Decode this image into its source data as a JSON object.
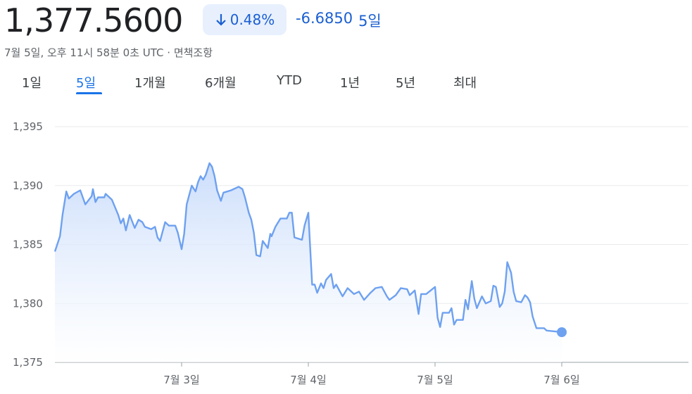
{
  "header": {
    "price": "1,377.5600",
    "change_percent": "0.48%",
    "change": "-6.6850",
    "period": "5일",
    "timestamp": "7월 5일, 오후 11시 58분 0초 UTC · 면책조항"
  },
  "tabs": {
    "items": [
      "1일",
      "5일",
      "1개월",
      "6개월",
      "YTD",
      "1년",
      "5년",
      "최대"
    ],
    "active": 1
  },
  "chart_data": {
    "type": "line",
    "color": "#6ea1f0",
    "grid": true,
    "xlim": [
      0,
      5
    ],
    "xticks": [
      {
        "value": 1,
        "label": "7월 3일"
      },
      {
        "value": 2,
        "label": "7월 4일"
      },
      {
        "value": 3,
        "label": "7월 5일"
      },
      {
        "value": 4,
        "label": "7월 6일"
      }
    ],
    "ylim": [
      1375,
      1395
    ],
    "yticks": [
      {
        "value": 1375,
        "label": "1,375"
      },
      {
        "value": 1380,
        "label": "1,380"
      },
      {
        "value": 1385,
        "label": "1,385"
      },
      {
        "value": 1390,
        "label": "1,390"
      },
      {
        "value": 1395,
        "label": "1,395"
      }
    ],
    "x": [
      0,
      0.04,
      0.06,
      0.09,
      0.11,
      0.15,
      0.2,
      0.24,
      0.29,
      0.3,
      0.32,
      0.34,
      0.39,
      0.4,
      0.45,
      0.5,
      0.52,
      0.54,
      0.56,
      0.59,
      0.63,
      0.66,
      0.69,
      0.71,
      0.76,
      0.79,
      0.81,
      0.83,
      0.87,
      0.9,
      0.95,
      0.97,
      1,
      1.02,
      1.04,
      1.06,
      1.08,
      1.11,
      1.13,
      1.15,
      1.17,
      1.19,
      1.22,
      1.24,
      1.26,
      1.28,
      1.31,
      1.33,
      1.39,
      1.45,
      1.48,
      1.5,
      1.53,
      1.55,
      1.57,
      1.59,
      1.62,
      1.64,
      1.68,
      1.7,
      1.71,
      1.74,
      1.78,
      1.83,
      1.85,
      1.87,
      1.89,
      1.95,
      1.97,
      2,
      2.03,
      2.05,
      2.07,
      2.1,
      2.12,
      2.14,
      2.18,
      2.2,
      2.22,
      2.27,
      2.31,
      2.36,
      2.4,
      2.44,
      2.49,
      2.53,
      2.58,
      2.62,
      2.64,
      2.69,
      2.73,
      2.78,
      2.8,
      2.84,
      2.87,
      2.89,
      2.93,
      3,
      3.02,
      3.04,
      3.06,
      3.11,
      3.13,
      3.15,
      3.17,
      3.22,
      3.24,
      3.26,
      3.29,
      3.31,
      3.33,
      3.37,
      3.4,
      3.44,
      3.46,
      3.48,
      3.51,
      3.53,
      3.55,
      3.57,
      3.6,
      3.62,
      3.64,
      3.68,
      3.71,
      3.73,
      3.75,
      3.77,
      3.8,
      3.86,
      3.88,
      4
    ],
    "values": [
      1384.4,
      1385.7,
      1387.5,
      1389.5,
      1388.9,
      1389.3,
      1389.6,
      1388.4,
      1389.1,
      1389.7,
      1388.6,
      1389.0,
      1389.0,
      1389.3,
      1388.8,
      1387.5,
      1386.8,
      1387.2,
      1386.2,
      1387.5,
      1386.4,
      1387.1,
      1386.9,
      1386.5,
      1386.3,
      1386.5,
      1385.6,
      1385.3,
      1386.9,
      1386.6,
      1386.6,
      1386.0,
      1384.6,
      1385.9,
      1388.4,
      1389.2,
      1390.0,
      1389.5,
      1390.3,
      1390.8,
      1390.5,
      1390.9,
      1391.9,
      1391.6,
      1390.8,
      1389.6,
      1388.7,
      1389.4,
      1389.6,
      1389.9,
      1389.7,
      1389.0,
      1387.7,
      1387.1,
      1386.0,
      1384.1,
      1384.0,
      1385.3,
      1384.7,
      1385.9,
      1385.7,
      1386.5,
      1387.2,
      1387.2,
      1387.7,
      1387.7,
      1385.6,
      1385.4,
      1386.6,
      1387.7,
      1381.6,
      1381.6,
      1380.9,
      1381.7,
      1381.3,
      1382.0,
      1382.5,
      1381.3,
      1381.6,
      1380.6,
      1381.3,
      1380.8,
      1381.0,
      1380.3,
      1380.9,
      1381.3,
      1381.4,
      1380.6,
      1380.3,
      1380.7,
      1381.3,
      1381.2,
      1380.7,
      1381.1,
      1379.1,
      1380.8,
      1380.8,
      1381.4,
      1378.8,
      1378.0,
      1379.2,
      1379.2,
      1379.6,
      1378.2,
      1378.6,
      1378.6,
      1380.3,
      1379.5,
      1381.9,
      1380.4,
      1379.6,
      1380.6,
      1380.0,
      1380.2,
      1381.5,
      1381.4,
      1379.7,
      1380.0,
      1381.0,
      1383.5,
      1382.6,
      1381.0,
      1380.2,
      1380.1,
      1380.7,
      1380.5,
      1380.1,
      1378.9,
      1377.9,
      1377.9,
      1377.7,
      1377.56
    ]
  }
}
